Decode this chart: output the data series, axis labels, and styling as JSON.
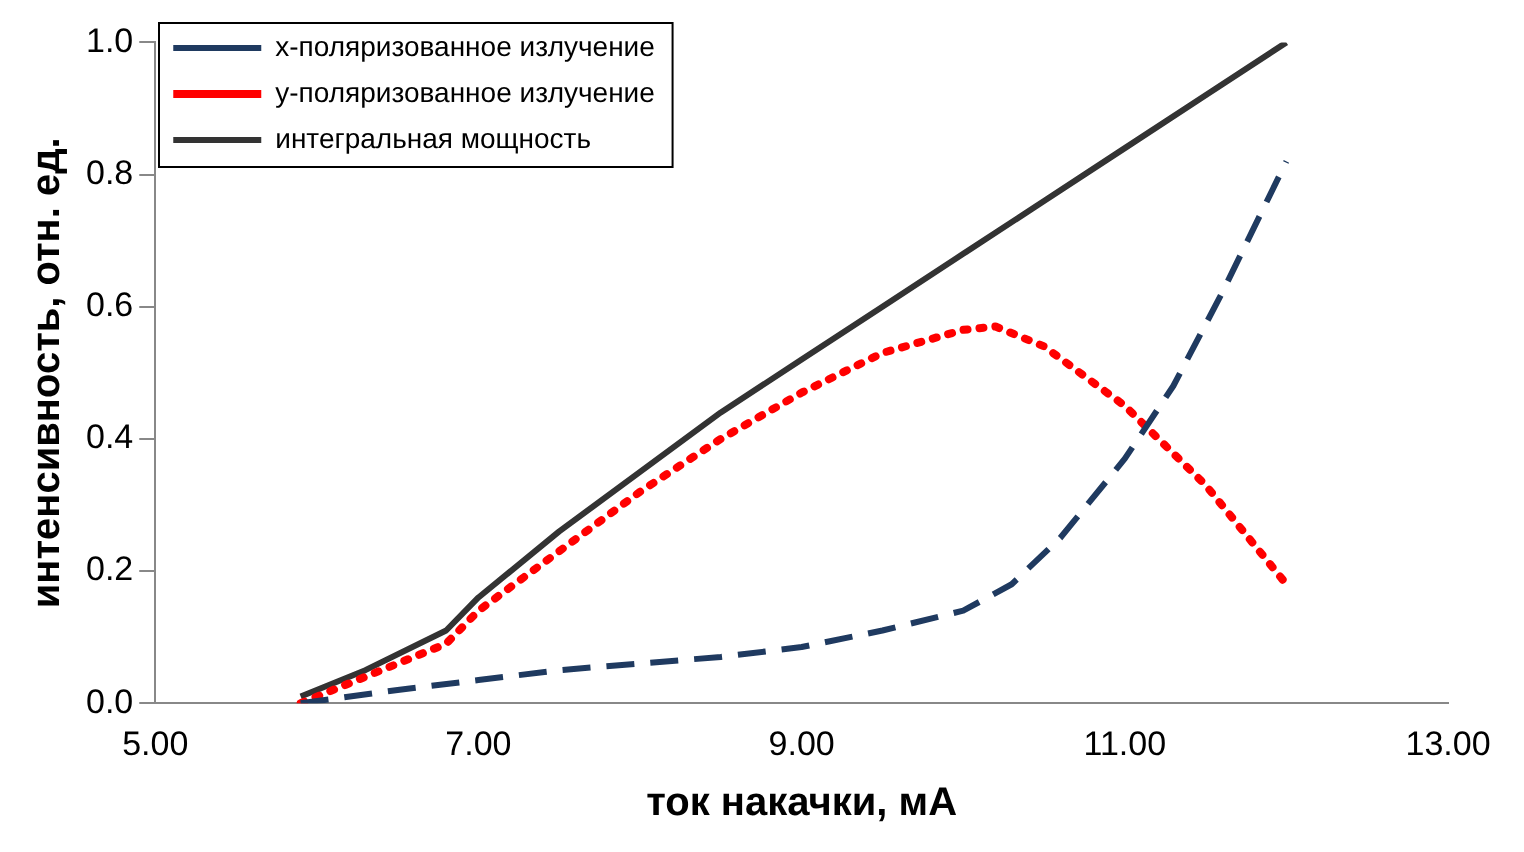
{
  "chart_data": {
    "type": "line",
    "xlabel": "ток накачки, мА",
    "ylabel": "интенсивность, отн. ед.",
    "xlim": [
      5,
      13
    ],
    "xticks": [
      {
        "value": 5,
        "label": "5.00"
      },
      {
        "value": 7,
        "label": "7.00"
      },
      {
        "value": 9,
        "label": "9.00"
      },
      {
        "value": 11,
        "label": "11.00"
      },
      {
        "value": 13,
        "label": "13.00"
      }
    ],
    "ylim": [
      0,
      1
    ],
    "yticks": [
      {
        "value": 0,
        "label": "0.0"
      },
      {
        "value": 0.2,
        "label": "0.2"
      },
      {
        "value": 0.4,
        "label": "0.4"
      },
      {
        "value": 0.6,
        "label": "0.6"
      },
      {
        "value": 0.8,
        "label": "0.8"
      },
      {
        "value": 1,
        "label": "1.0"
      }
    ],
    "grid": false,
    "legend": "top left",
    "marker": "none",
    "series": [
      {
        "name": "x-поляризованное излучение",
        "color": "#1f3a60",
        "line_style": "dashed",
        "x": [
          5.9,
          6.5,
          7.0,
          7.5,
          8.0,
          8.5,
          9.0,
          9.5,
          10.0,
          10.3,
          10.6,
          11.0,
          11.3,
          11.6,
          12.0
        ],
        "values": [
          0.0,
          0.02,
          0.035,
          0.05,
          0.06,
          0.07,
          0.085,
          0.11,
          0.14,
          0.18,
          0.25,
          0.37,
          0.48,
          0.62,
          0.82
        ]
      },
      {
        "name": "y-поляризованное излучение",
        "color": "#ff0000",
        "line_style": "dotted",
        "x": [
          5.9,
          6.3,
          6.8,
          7.0,
          7.5,
          8.0,
          8.5,
          9.0,
          9.5,
          10.0,
          10.2,
          10.5,
          11.0,
          11.5,
          12.0
        ],
        "values": [
          0.0,
          0.04,
          0.09,
          0.14,
          0.23,
          0.32,
          0.4,
          0.47,
          0.53,
          0.565,
          0.57,
          0.54,
          0.45,
          0.33,
          0.18
        ]
      },
      {
        "name": "интегральная мощность",
        "color": "#333333",
        "line_style": "solid",
        "x": [
          5.9,
          6.3,
          6.8,
          7.0,
          7.5,
          8.0,
          8.5,
          9.0,
          9.5,
          10.0,
          10.5,
          11.0,
          11.5,
          12.0
        ],
        "values": [
          0.01,
          0.05,
          0.11,
          0.16,
          0.26,
          0.35,
          0.44,
          0.52,
          0.6,
          0.68,
          0.76,
          0.84,
          0.92,
          1.0
        ]
      }
    ]
  }
}
